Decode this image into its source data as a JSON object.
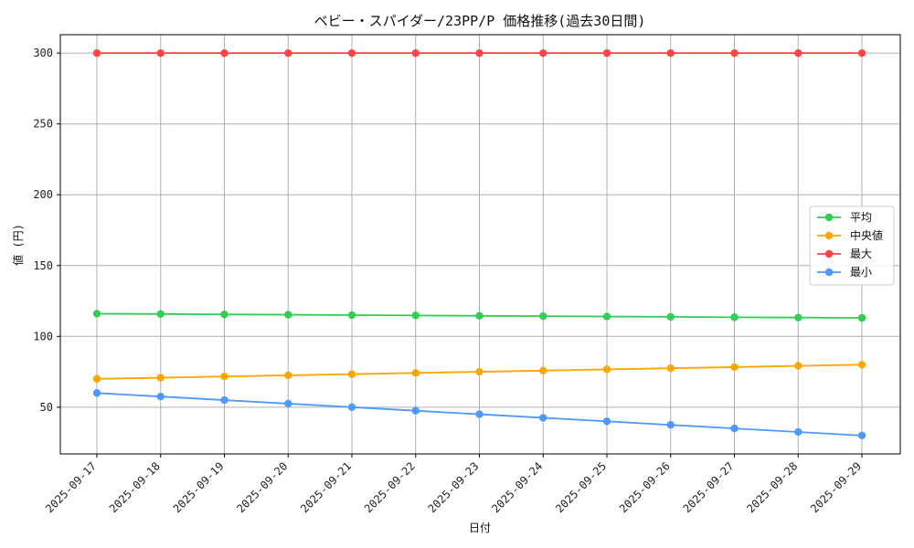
{
  "chart_data": {
    "type": "line",
    "title": "ベビー・スパイダー/23PP/P 価格推移(過去30日間)",
    "xlabel": "日付",
    "ylabel": "値 (円)",
    "x": [
      "2025-09-17",
      "2025-09-18",
      "2025-09-19",
      "2025-09-20",
      "2025-09-21",
      "2025-09-22",
      "2025-09-23",
      "2025-09-24",
      "2025-09-25",
      "2025-09-26",
      "2025-09-27",
      "2025-09-28",
      "2025-09-29"
    ],
    "ylim": [
      17,
      313
    ],
    "yticks": [
      50,
      100,
      150,
      200,
      250,
      300
    ],
    "grid": true,
    "legend_position": "center-right",
    "series": [
      {
        "name": "平均",
        "color": "#33cc55",
        "values": [
          116,
          115.8,
          115.5,
          115.3,
          115,
          114.8,
          114.5,
          114.3,
          114,
          113.8,
          113.5,
          113.3,
          113
        ]
      },
      {
        "name": "中央値",
        "color": "#ffa500",
        "values": [
          70,
          70.8,
          71.7,
          72.5,
          73.3,
          74.2,
          75,
          75.8,
          76.7,
          77.5,
          78.3,
          79.2,
          80
        ]
      },
      {
        "name": "最大",
        "color": "#ff4444",
        "values": [
          300,
          300,
          300,
          300,
          300,
          300,
          300,
          300,
          300,
          300,
          300,
          300,
          300
        ]
      },
      {
        "name": "最小",
        "color": "#4d99ff",
        "values": [
          60,
          57.5,
          55,
          52.5,
          50,
          47.5,
          45,
          42.5,
          40,
          37.5,
          35,
          32.5,
          30
        ]
      }
    ]
  }
}
